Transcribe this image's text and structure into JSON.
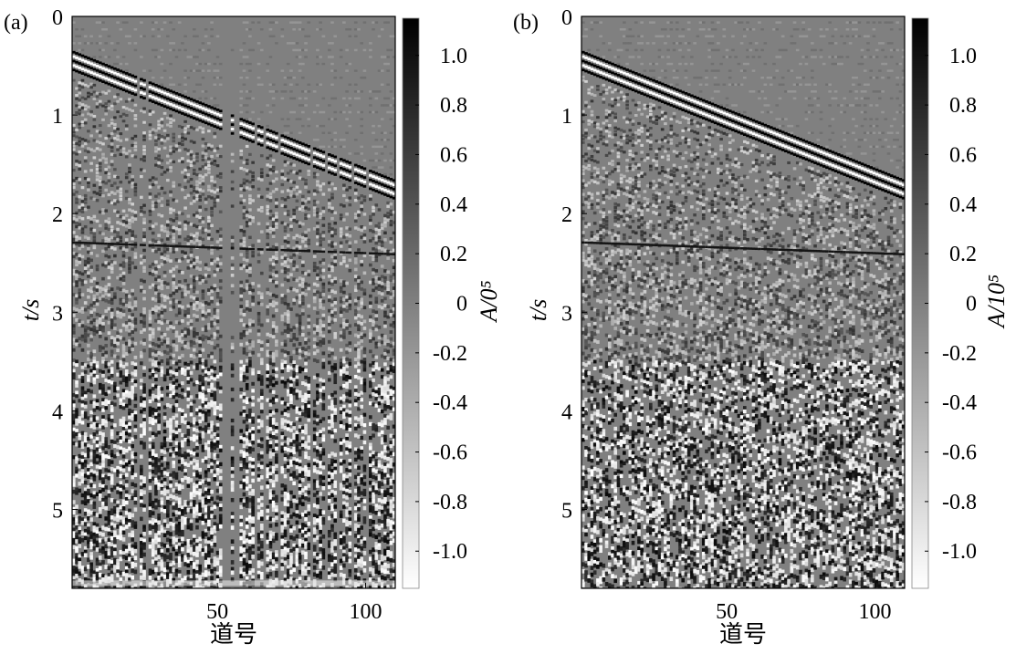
{
  "chart_data": [
    {
      "type": "heatmap",
      "panel_label": "(a)",
      "xlabel": "道号",
      "ylabel": "t/s",
      "xlim": [
        1,
        110
      ],
      "ylim": [
        5.8,
        0
      ],
      "xticks": [
        "50",
        "100"
      ],
      "xtick_values": [
        50,
        100
      ],
      "yticks": [
        "0",
        "1",
        "2",
        "3",
        "4",
        "5"
      ],
      "ytick_values": [
        0,
        1,
        2,
        3,
        4,
        5
      ],
      "first_break_s": {
        "trace_1": 0.35,
        "trace_110": 1.65
      },
      "colorbar": {
        "label": "A/0⁵",
        "range": [
          -1.15,
          1.15
        ],
        "ticks": [
          "1.0",
          "0.8",
          "0.6",
          "0.4",
          "0.2",
          "0",
          "-0.2",
          "-0.4",
          "-0.6",
          "-0.8",
          "-1.0"
        ],
        "tick_values": [
          1.0,
          0.8,
          0.6,
          0.4,
          0.2,
          0,
          -0.2,
          -0.4,
          -0.6,
          -0.8,
          -1.0
        ],
        "colormap": [
          "#ffffff",
          "#000000"
        ]
      },
      "missing_traces": [
        23,
        26,
        52,
        53,
        54,
        56,
        57,
        63,
        66,
        71,
        82,
        87,
        91,
        96,
        101
      ]
    },
    {
      "type": "heatmap",
      "panel_label": "(b)",
      "xlabel": "道号",
      "ylabel": "t/s",
      "xlim": [
        1,
        110
      ],
      "ylim": [
        5.8,
        0
      ],
      "xticks": [
        "50",
        "100"
      ],
      "xtick_values": [
        50,
        100
      ],
      "yticks": [
        "0",
        "1",
        "2",
        "3",
        "4",
        "5"
      ],
      "ytick_values": [
        0,
        1,
        2,
        3,
        4,
        5
      ],
      "first_break_s": {
        "trace_1": 0.35,
        "trace_110": 1.65
      },
      "colorbar": {
        "label": "A/10⁵",
        "range": [
          -1.15,
          1.15
        ],
        "ticks": [
          "1.0",
          "0.8",
          "0.6",
          "0.4",
          "0.2",
          "0",
          "-0.2",
          "-0.4",
          "-0.6",
          "-0.8",
          "-1.0"
        ],
        "tick_values": [
          1.0,
          0.8,
          0.6,
          0.4,
          0.2,
          0,
          -0.2,
          -0.4,
          -0.6,
          -0.8,
          -1.0
        ],
        "colormap": [
          "#ffffff",
          "#000000"
        ]
      },
      "missing_traces": []
    }
  ],
  "colors": {
    "background_gray": "#808080",
    "axis": "#000000"
  }
}
